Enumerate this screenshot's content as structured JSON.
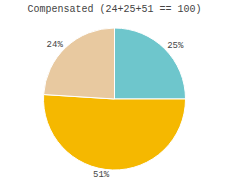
{
  "chart_data": {
    "type": "pie",
    "title": "Compensated (24+25+51 == 100)",
    "values": [
      25,
      51,
      24
    ],
    "value_labels": [
      "25%",
      "51%",
      "24%"
    ],
    "colors": [
      "#6ec6cc",
      "#f5b800",
      "#e8c9a0"
    ],
    "data_labels": true
  }
}
